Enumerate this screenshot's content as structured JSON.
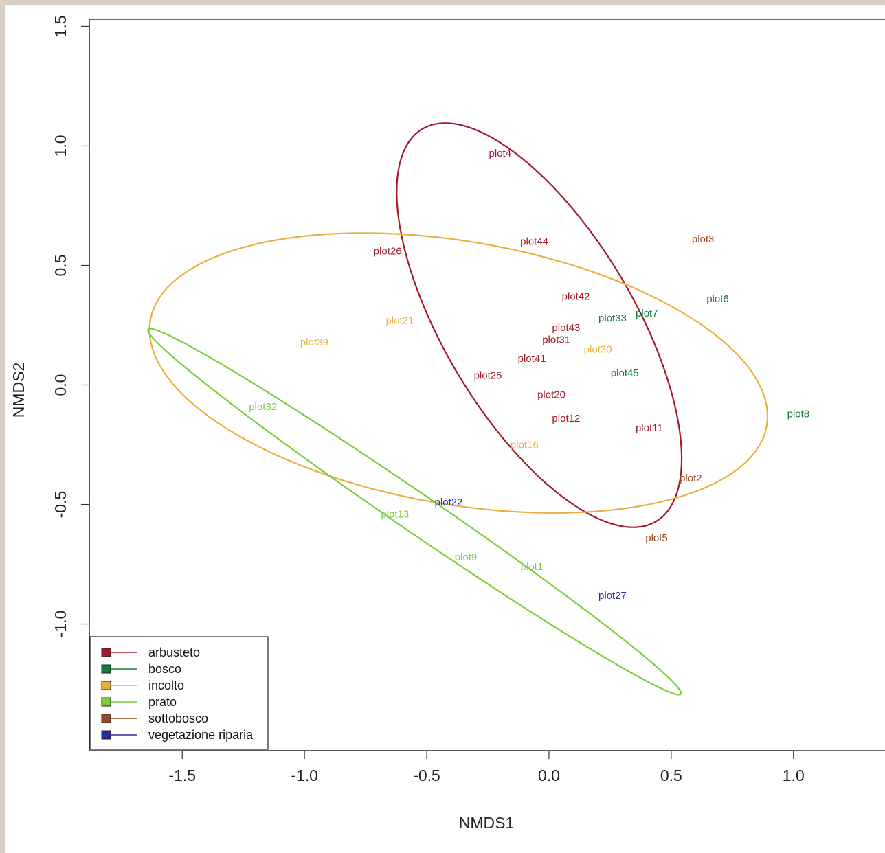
{
  "chart_data": {
    "type": "scatter",
    "xlabel": "NMDS1",
    "ylabel": "NMDS2",
    "xlim": [
      -1.88,
      1.38
    ],
    "ylim": [
      -1.53,
      1.53
    ],
    "xticks": [
      -1.5,
      -1.0,
      -0.5,
      0.0,
      0.5,
      1.0
    ],
    "yticks": [
      -1.0,
      -0.5,
      0.0,
      0.5,
      1.0,
      1.5
    ],
    "xtick_labels": [
      "-1.5",
      "-1.0",
      "-0.5",
      "0.0",
      "0.5",
      "1.0"
    ],
    "ytick_labels": [
      "-1.0",
      "-0.5",
      "0.0",
      "0.5",
      "1.0",
      "1.5"
    ],
    "legend_position": "bottom-left",
    "groups": [
      {
        "name": "arbusteto",
        "color": "#a11a2a"
      },
      {
        "name": "bosco",
        "color": "#187a3a"
      },
      {
        "name": "incolto",
        "color": "#e8b040"
      },
      {
        "name": "prato",
        "color": "#7ccc3c"
      },
      {
        "name": "sottobosco",
        "color": "#9a4a22"
      },
      {
        "name": "vegetazione riparia",
        "color": "#2a2aa0"
      }
    ],
    "points": [
      {
        "label": "plot4",
        "group": "arbusteto",
        "x": -0.2,
        "y": 0.97
      },
      {
        "label": "plot44",
        "group": "arbusteto",
        "x": -0.06,
        "y": 0.6
      },
      {
        "label": "plot26",
        "group": "arbusteto",
        "x": -0.66,
        "y": 0.56
      },
      {
        "label": "plot3",
        "group": "sottobosco",
        "x": 0.63,
        "y": 0.61
      },
      {
        "label": "plot42",
        "group": "arbusteto",
        "x": 0.11,
        "y": 0.37
      },
      {
        "label": "plot6",
        "group": "bosco",
        "x": 0.69,
        "y": 0.36
      },
      {
        "label": "plot33",
        "group": "bosco",
        "x": 0.26,
        "y": 0.28
      },
      {
        "label": "plot7",
        "group": "bosco",
        "x": 0.4,
        "y": 0.3
      },
      {
        "label": "plot21",
        "group": "incolto",
        "x": -0.61,
        "y": 0.27
      },
      {
        "label": "plot43",
        "group": "arbusteto",
        "x": 0.07,
        "y": 0.24
      },
      {
        "label": "plot31",
        "group": "arbusteto",
        "x": 0.03,
        "y": 0.19
      },
      {
        "label": "plot39",
        "group": "incolto",
        "x": -0.96,
        "y": 0.18
      },
      {
        "label": "plot30",
        "group": "incolto",
        "x": 0.2,
        "y": 0.15
      },
      {
        "label": "plot41",
        "group": "arbusteto",
        "x": -0.07,
        "y": 0.11
      },
      {
        "label": "plot25",
        "group": "arbusteto",
        "x": -0.25,
        "y": 0.04
      },
      {
        "label": "plot45",
        "group": "bosco",
        "x": 0.31,
        "y": 0.05
      },
      {
        "label": "plot20",
        "group": "arbusteto",
        "x": 0.01,
        "y": -0.04
      },
      {
        "label": "plot32",
        "group": "prato",
        "x": -1.17,
        "y": -0.09
      },
      {
        "label": "plot8",
        "group": "bosco",
        "x": 1.02,
        "y": -0.12
      },
      {
        "label": "plot12",
        "group": "arbusteto",
        "x": 0.07,
        "y": -0.14
      },
      {
        "label": "plot11",
        "group": "arbusteto",
        "x": 0.41,
        "y": -0.18
      },
      {
        "label": "plot16",
        "group": "incolto",
        "x": -0.1,
        "y": -0.25
      },
      {
        "label": "plot2",
        "group": "sottobosco",
        "x": 0.58,
        "y": -0.39
      },
      {
        "label": "plot22",
        "group": "vegetazione riparia",
        "x": -0.41,
        "y": -0.49
      },
      {
        "label": "plot13",
        "group": "prato",
        "x": -0.63,
        "y": -0.54
      },
      {
        "label": "plot5",
        "group": "sottobosco",
        "x": 0.44,
        "y": -0.64
      },
      {
        "label": "plot9",
        "group": "prato",
        "x": -0.34,
        "y": -0.72
      },
      {
        "label": "plot1",
        "group": "prato",
        "x": -0.07,
        "y": -0.76
      },
      {
        "label": "plot27",
        "group": "vegetazione riparia",
        "x": 0.26,
        "y": -0.88
      }
    ],
    "ellipses": [
      {
        "group": "arbusteto",
        "cx": -0.04,
        "cy": 0.25,
        "rx": 0.95,
        "ry": 0.39,
        "angle_deg": -60
      },
      {
        "group": "incolto",
        "cx": -0.37,
        "cy": 0.05,
        "rx": 1.28,
        "ry": 0.55,
        "angle_deg": -10
      },
      {
        "group": "prato",
        "cx": -0.55,
        "cy": -0.53,
        "rx": 1.33,
        "ry": 0.08,
        "angle_deg": -35
      }
    ]
  }
}
